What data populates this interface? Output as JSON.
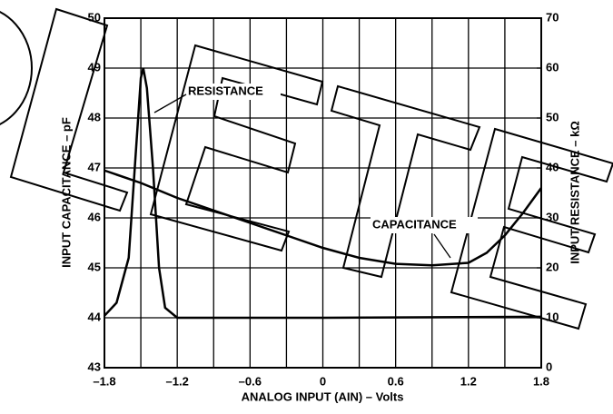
{
  "chart_data": {
    "type": "line",
    "xlabel": "ANALOG INPUT (AIN) – Volts",
    "ylabel": "INPUT CAPACITANCE – pF",
    "y2label": "INPUT RESISTANCE – kΩ",
    "xlim": [
      -1.8,
      1.8
    ],
    "xticks": [
      {
        "value": -1.8,
        "label": "–1.8"
      },
      {
        "value": -1.2,
        "label": "–1.2"
      },
      {
        "value": -0.6,
        "label": "–0.6"
      },
      0,
      0.6,
      1.2,
      1.8
    ],
    "xminorticks": [
      -1.5,
      -0.9,
      -0.3,
      0.3,
      0.9,
      1.5
    ],
    "ylim": [
      43,
      50
    ],
    "yticks": [
      43,
      44,
      45,
      46,
      47,
      48,
      49,
      50
    ],
    "y2lim": [
      0,
      70
    ],
    "y2ticks": [
      0,
      10,
      20,
      30,
      40,
      50,
      60,
      70
    ],
    "grid": true,
    "series": [
      {
        "name": "CAPACITANCE",
        "color": "#000000",
        "x": [
          -1.8,
          -1.5,
          -1.2,
          -0.9,
          -0.6,
          -0.3,
          0,
          0.3,
          0.6,
          0.9,
          1.2,
          1.35,
          1.5,
          1.65,
          1.8
        ],
        "values": [
          46.95,
          46.7,
          46.4,
          46.15,
          45.9,
          45.65,
          45.4,
          45.2,
          45.08,
          45.05,
          45.1,
          45.3,
          45.65,
          46.1,
          46.6
        ]
      },
      {
        "name": "RESISTANCE",
        "color": "#000000",
        "axis": "y2",
        "x": [
          -1.8,
          -1.7,
          -1.6,
          -1.55,
          -1.5,
          -1.48,
          -1.45,
          -1.4,
          -1.35,
          -1.3,
          -1.2,
          0,
          1.8
        ],
        "values": [
          10.4,
          13,
          22,
          40,
          58,
          60,
          56,
          40,
          20,
          12,
          10,
          10,
          10.2
        ]
      }
    ]
  }
}
